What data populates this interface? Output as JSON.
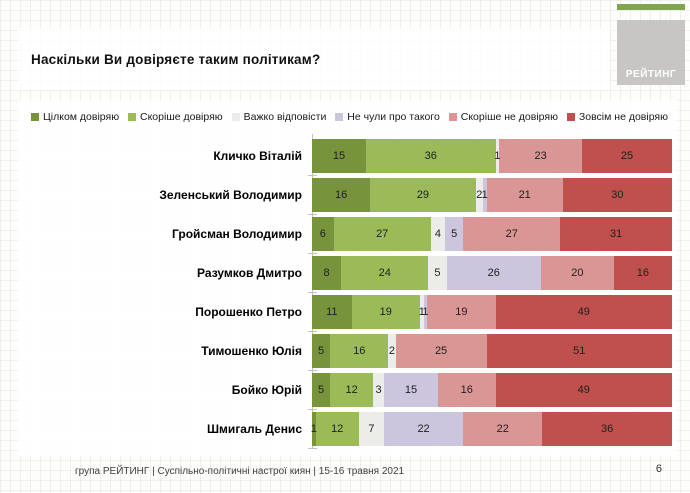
{
  "slide": {
    "title": "Наскільки Ви довіряєте таким політикам?",
    "page_number": "6",
    "logo": {
      "text": "РЕЙТИНГ",
      "box_color": "#c7c6c4",
      "accent_bar_color": "#7fa64e"
    },
    "footer": {
      "text": "група РЕЙТИНГ  | Суспільно-політичні настрої киян | 15-16 травня 2021"
    }
  },
  "chart_data": {
    "type": "bar",
    "stacked": true,
    "orientation": "horizontal",
    "unit": "%",
    "xlim": [
      0,
      100
    ],
    "grid": false,
    "legend_position": "top",
    "title": "Наскільки Ви довіряєте таким політикам?",
    "categories": [
      "Кличко Віталій",
      "Зеленський Володимир",
      "Гройсман Володимир",
      "Разумков Дмитро",
      "Порошенко Петро",
      "Тимошенко Юлія",
      "Бойко Юрій",
      "Шмигаль Денис"
    ],
    "series": [
      {
        "name": "Цілком довіряю",
        "color": "#77933C",
        "values": [
          15,
          16,
          6,
          8,
          11,
          5,
          5,
          1
        ]
      },
      {
        "name": "Скоріше довіряю",
        "color": "#9BBB59",
        "values": [
          36,
          29,
          27,
          24,
          19,
          16,
          12,
          12
        ]
      },
      {
        "name": "Важко відповісти",
        "color": "#ECECE8",
        "values": [
          1,
          2,
          4,
          5,
          1,
          2,
          3,
          7
        ]
      },
      {
        "name": "Не чули про такого",
        "color": "#CCC5DE",
        "values": [
          0,
          1,
          5,
          26,
          1,
          0,
          15,
          22
        ]
      },
      {
        "name": "Скоріше не довіряю",
        "color": "#D99694",
        "values": [
          23,
          21,
          27,
          20,
          19,
          25,
          16,
          22
        ]
      },
      {
        "name": "Зовсім не довіряю",
        "color": "#C0504D",
        "values": [
          25,
          30,
          31,
          16,
          49,
          51,
          49,
          36
        ]
      }
    ]
  }
}
